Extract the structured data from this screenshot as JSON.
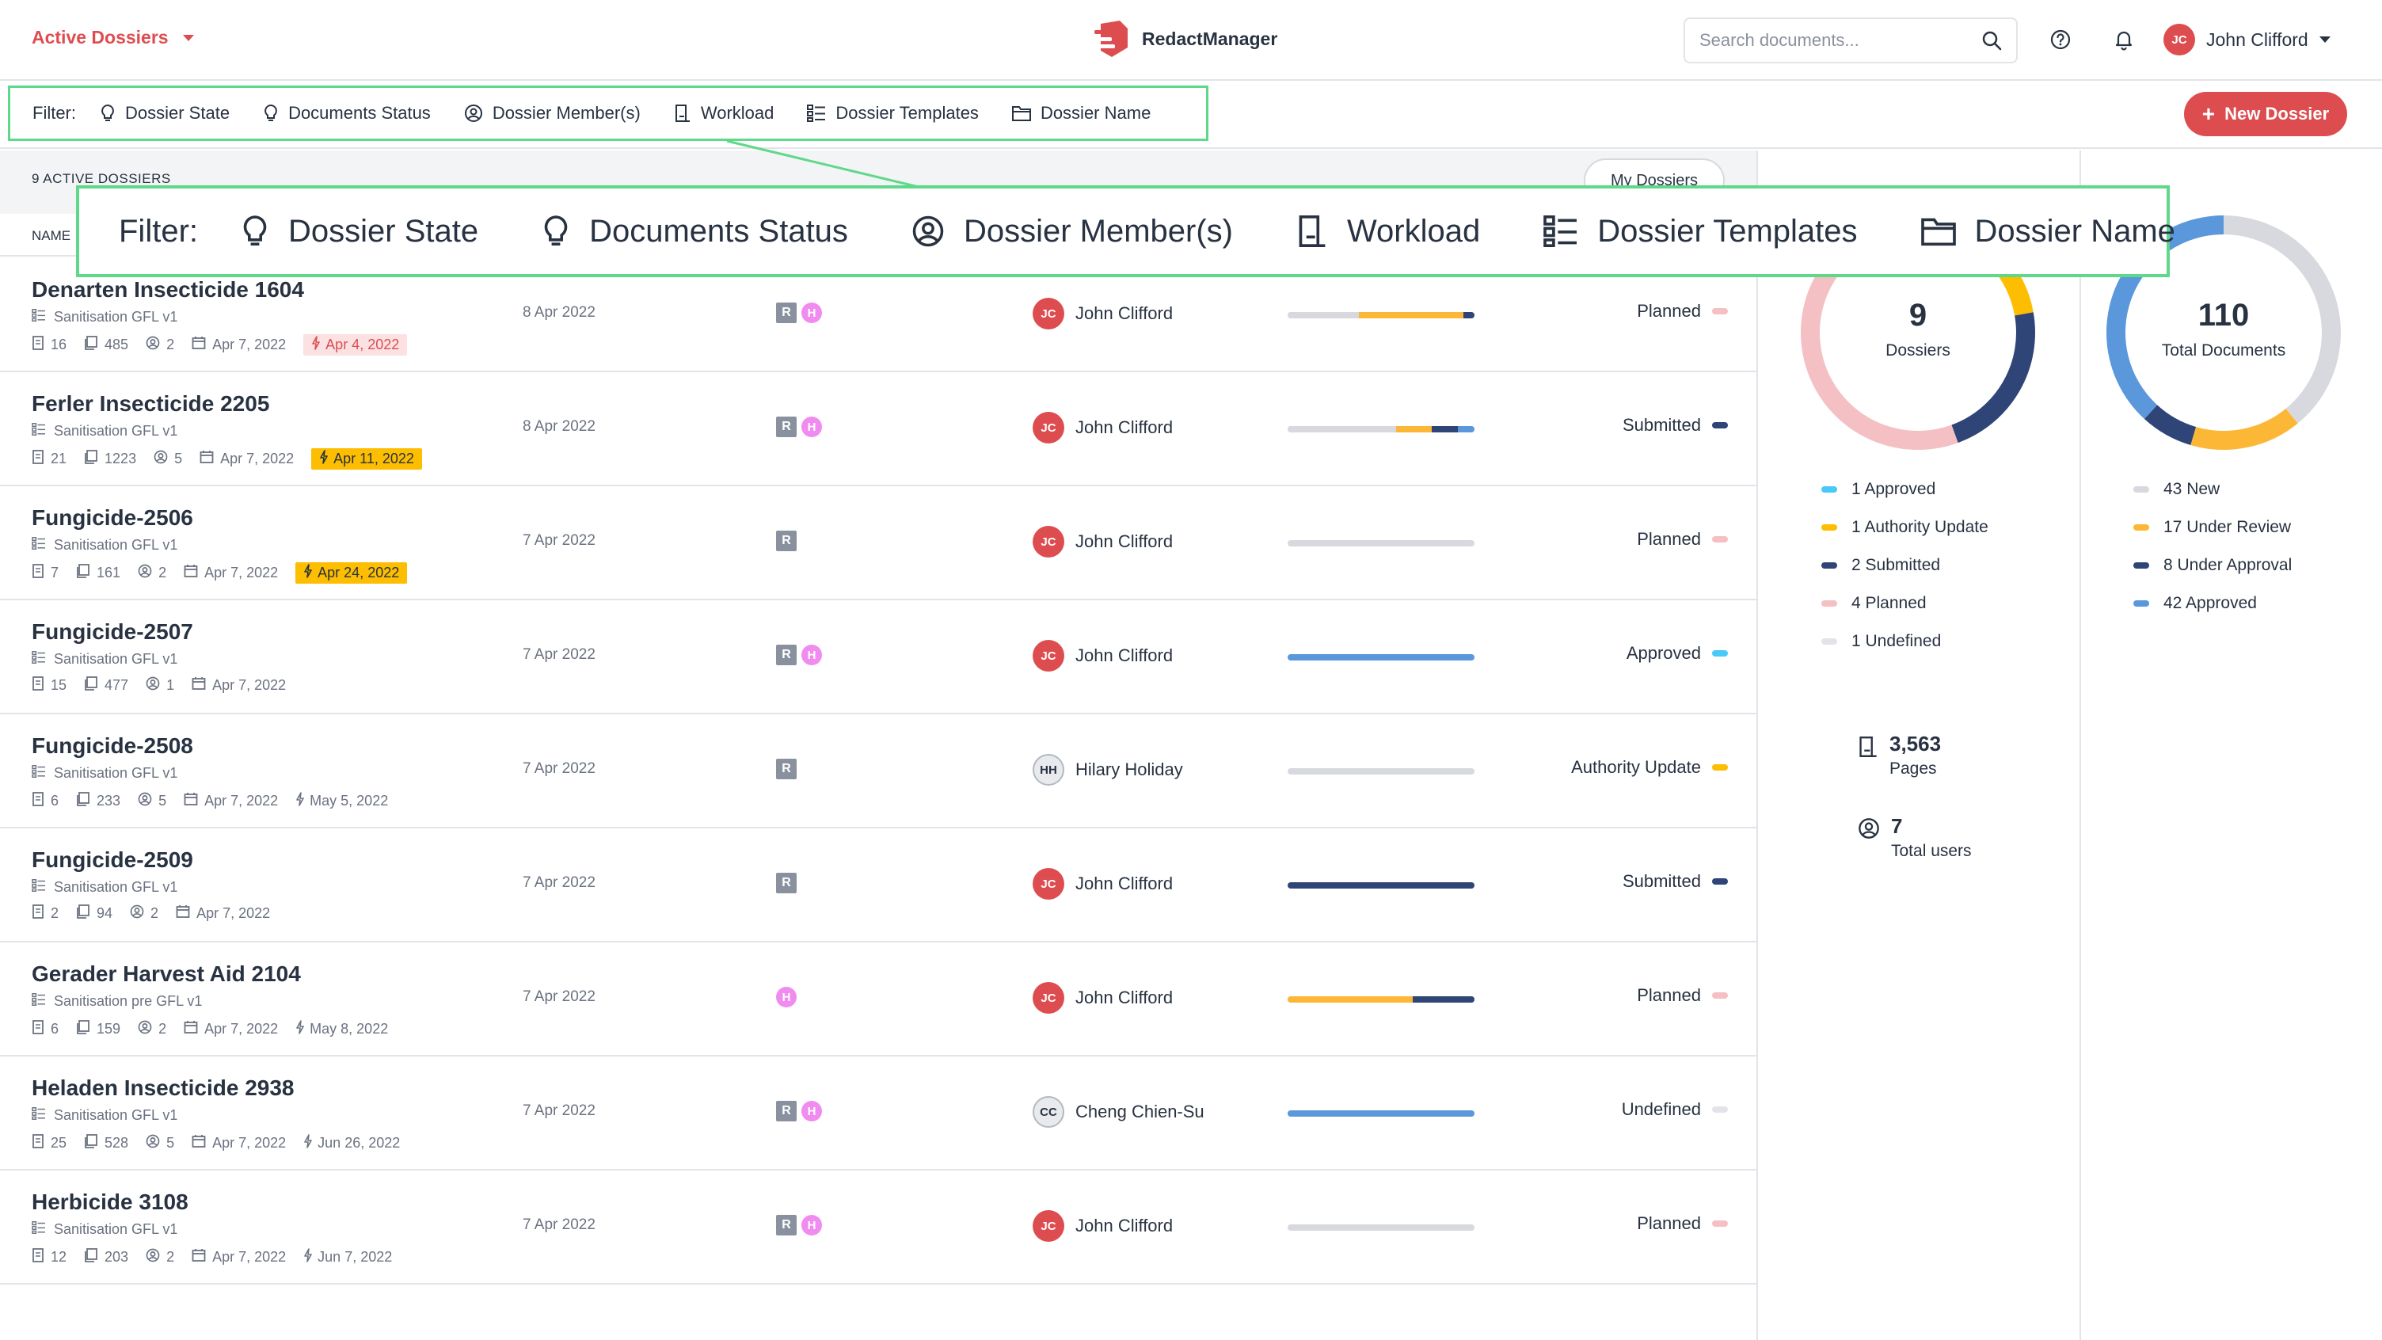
{
  "header": {
    "view_selector": "Active Dossiers",
    "app_name": "RedactManager",
    "search_placeholder": "Search documents...",
    "user_initials": "JC",
    "user_name": "John Clifford"
  },
  "filters": {
    "label": "Filter:",
    "items": [
      {
        "label": "Dossier State",
        "icon": "lightbulb-icon"
      },
      {
        "label": "Documents Status",
        "icon": "lightbulb-icon"
      },
      {
        "label": "Dossier Member(s)",
        "icon": "user-circle-icon"
      },
      {
        "label": "Workload",
        "icon": "workload-icon"
      },
      {
        "label": "Dossier Templates",
        "icon": "template-list-icon"
      },
      {
        "label": "Dossier Name",
        "icon": "folder-icon"
      }
    ],
    "new_dossier_label": "New Dossier"
  },
  "list": {
    "count_label": "9 ACTIVE DOSSIERS",
    "my_dossiers_label": "My Dossiers",
    "column_name": "NAME",
    "rows": [
      {
        "title": "Denarten Insecticide 1604",
        "template": "Sanitisation GFL v1",
        "docs": "16",
        "pages": "485",
        "members": "2",
        "date": "Apr 7, 2022",
        "due": "Apr 4, 2022",
        "due_style": "red",
        "created": "8 Apr 2022",
        "flags": [
          "R",
          "H"
        ],
        "owner_initials": "JC",
        "owner": "John Clifford",
        "owner_style": "red",
        "workload": [
          {
            "color": "#d7d9de",
            "frac": 0.38
          },
          {
            "color": "#fdb736",
            "frac": 0.56
          },
          {
            "color": "#2f4477",
            "frac": 0.06
          }
        ],
        "status": "Planned",
        "status_color": "#f4c0c3"
      },
      {
        "title": "Ferler Insecticide 2205",
        "template": "Sanitisation GFL v1",
        "docs": "21",
        "pages": "1223",
        "members": "5",
        "date": "Apr 7, 2022",
        "due": "Apr 11, 2022",
        "due_style": "yellow",
        "created": "8 Apr 2022",
        "flags": [
          "R",
          "H"
        ],
        "owner_initials": "JC",
        "owner": "John Clifford",
        "owner_style": "red",
        "workload": [
          {
            "color": "#d7d9de",
            "frac": 0.58
          },
          {
            "color": "#fdb736",
            "frac": 0.19
          },
          {
            "color": "#2f4477",
            "frac": 0.14
          },
          {
            "color": "#5b97db",
            "frac": 0.09
          }
        ],
        "status": "Submitted",
        "status_color": "#2f4477"
      },
      {
        "title": "Fungicide-2506",
        "template": "Sanitisation GFL v1",
        "docs": "7",
        "pages": "161",
        "members": "2",
        "date": "Apr 7, 2022",
        "due": "Apr 24, 2022",
        "due_style": "yellow",
        "created": "7 Apr 2022",
        "flags": [
          "R"
        ],
        "owner_initials": "JC",
        "owner": "John Clifford",
        "owner_style": "red",
        "workload": [
          {
            "color": "#d7d9de",
            "frac": 1.0
          }
        ],
        "status": "Planned",
        "status_color": "#f4c0c3"
      },
      {
        "title": "Fungicide-2507",
        "template": "Sanitisation GFL v1",
        "docs": "15",
        "pages": "477",
        "members": "1",
        "date": "Apr 7, 2022",
        "due": "",
        "due_style": "none",
        "created": "7 Apr 2022",
        "flags": [
          "R",
          "H"
        ],
        "owner_initials": "JC",
        "owner": "John Clifford",
        "owner_style": "red",
        "workload": [
          {
            "color": "#5b97db",
            "frac": 1.0
          }
        ],
        "status": "Approved",
        "status_color": "#48c9f7"
      },
      {
        "title": "Fungicide-2508",
        "template": "Sanitisation GFL v1",
        "docs": "6",
        "pages": "233",
        "members": "5",
        "date": "Apr 7, 2022",
        "due": "May 5, 2022",
        "due_style": "plain",
        "created": "7 Apr 2022",
        "flags": [
          "R"
        ],
        "owner_initials": "HH",
        "owner": "Hilary Holiday",
        "owner_style": "grey",
        "workload": [
          {
            "color": "#d7d9de",
            "frac": 1.0
          }
        ],
        "status": "Authority Update",
        "status_color": "#fdbd00"
      },
      {
        "title": "Fungicide-2509",
        "template": "Sanitisation GFL v1",
        "docs": "2",
        "pages": "94",
        "members": "2",
        "date": "Apr 7, 2022",
        "due": "",
        "due_style": "none",
        "created": "7 Apr 2022",
        "flags": [
          "R"
        ],
        "owner_initials": "JC",
        "owner": "John Clifford",
        "owner_style": "red",
        "workload": [
          {
            "color": "#2f4477",
            "frac": 1.0
          }
        ],
        "status": "Submitted",
        "status_color": "#2f4477"
      },
      {
        "title": "Gerader Harvest Aid 2104",
        "template": "Sanitisation pre GFL v1",
        "docs": "6",
        "pages": "159",
        "members": "2",
        "date": "Apr 7, 2022",
        "due": "May 8, 2022",
        "due_style": "plain",
        "created": "7 Apr 2022",
        "flags": [
          "H"
        ],
        "owner_initials": "JC",
        "owner": "John Clifford",
        "owner_style": "red",
        "workload": [
          {
            "color": "#fdb736",
            "frac": 0.67
          },
          {
            "color": "#2f4477",
            "frac": 0.33
          }
        ],
        "status": "Planned",
        "status_color": "#f4c0c3"
      },
      {
        "title": "Heladen Insecticide 2938",
        "template": "Sanitisation GFL v1",
        "docs": "25",
        "pages": "528",
        "members": "5",
        "date": "Apr 7, 2022",
        "due": "Jun 26, 2022",
        "due_style": "plain",
        "created": "7 Apr 2022",
        "flags": [
          "R",
          "H"
        ],
        "owner_initials": "CC",
        "owner": "Cheng Chien-Su",
        "owner_style": "grey",
        "workload": [
          {
            "color": "#5b97db",
            "frac": 1.0
          }
        ],
        "status": "Undefined",
        "status_color": "#e2e4e9"
      },
      {
        "title": "Herbicide 3108",
        "template": "Sanitisation GFL v1",
        "docs": "12",
        "pages": "203",
        "members": "2",
        "date": "Apr 7, 2022",
        "due": "Jun 7, 2022",
        "due_style": "plain",
        "created": "7 Apr 2022",
        "flags": [
          "R",
          "H"
        ],
        "owner_initials": "JC",
        "owner": "John Clifford",
        "owner_style": "red",
        "workload": [
          {
            "color": "#d7d9de",
            "frac": 1.0
          }
        ],
        "status": "Planned",
        "status_color": "#f4c0c3"
      }
    ]
  },
  "stats": {
    "dossiers": {
      "total": "9",
      "label": "Dossiers",
      "legend": [
        {
          "label": "1 Approved",
          "color": "#48c9f7",
          "value": 1
        },
        {
          "label": "1 Authority Update",
          "color": "#fdbd00",
          "value": 1
        },
        {
          "label": "2 Submitted",
          "color": "#2f4477",
          "value": 2
        },
        {
          "label": "4 Planned",
          "color": "#f4c0c3",
          "value": 4
        },
        {
          "label": "1 Undefined",
          "color": "#e2e4e9",
          "value": 1
        }
      ]
    },
    "documents": {
      "total": "110",
      "label": "Total Documents",
      "legend": [
        {
          "label": "43 New",
          "color": "#d7d9de",
          "value": 43
        },
        {
          "label": "17 Under Review",
          "color": "#fdb736",
          "value": 17
        },
        {
          "label": "8 Under Approval",
          "color": "#2f4477",
          "value": 8
        },
        {
          "label": "42 Approved",
          "color": "#5b97db",
          "value": 42
        }
      ]
    },
    "pages_value": "3,563",
    "pages_label": "Pages",
    "users_value": "7",
    "users_label": "Total users"
  }
}
